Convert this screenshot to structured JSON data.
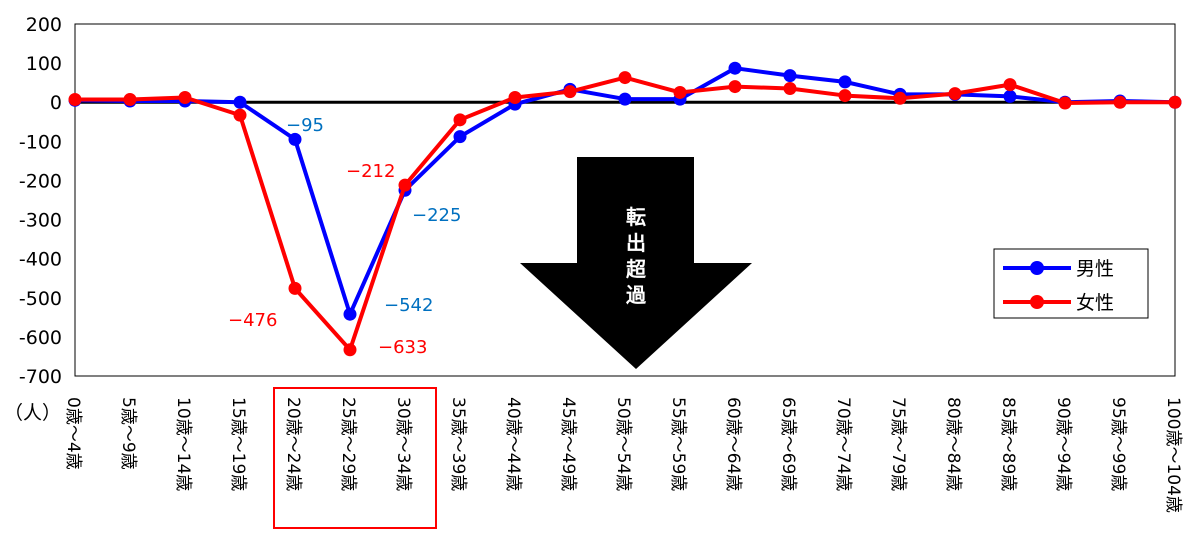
{
  "chart_data": {
    "type": "line",
    "categories": [
      "0歳～4歳",
      "5歳～9歳",
      "10歳～14歳",
      "15歳～19歳",
      "20歳～24歳",
      "25歳～29歳",
      "30歳～34歳",
      "35歳～39歳",
      "40歳～44歳",
      "45歳～49歳",
      "50歳～54歳",
      "55歳～59歳",
      "60歳～64歳",
      "65歳～69歳",
      "70歳～74歳",
      "75歳～79歳",
      "80歳～84歳",
      "85歳～89歳",
      "90歳～94歳",
      "95歳～99歳",
      "100歳～104歳"
    ],
    "series": [
      {
        "name": "男性",
        "color": "#0000ff",
        "values": [
          5,
          3,
          3,
          0,
          -95,
          -542,
          -225,
          -88,
          -5,
          33,
          8,
          8,
          87,
          68,
          52,
          20,
          20,
          15,
          0,
          3,
          0
        ]
      },
      {
        "name": "女性",
        "color": "#ff0000",
        "values": [
          7,
          7,
          12,
          -33,
          -476,
          -633,
          -212,
          -45,
          12,
          27,
          63,
          25,
          40,
          35,
          17,
          10,
          22,
          45,
          -2,
          0,
          0
        ]
      }
    ],
    "ylim": [
      -700,
      200
    ],
    "yticks": [
      "200",
      "100",
      "0",
      "-100",
      "-200",
      "-300",
      "-400",
      "-500",
      "-600",
      "-700"
    ],
    "y_unit": "（人）",
    "data_labels": {
      "male": [
        "−95",
        "−542",
        "−225"
      ],
      "female": [
        "−476",
        "−633",
        "−212"
      ]
    },
    "annotation": "転出超過",
    "legend_position": "right",
    "highlight": [
      "20歳～24歳",
      "25歳～29歳",
      "30歳～34歳"
    ]
  }
}
